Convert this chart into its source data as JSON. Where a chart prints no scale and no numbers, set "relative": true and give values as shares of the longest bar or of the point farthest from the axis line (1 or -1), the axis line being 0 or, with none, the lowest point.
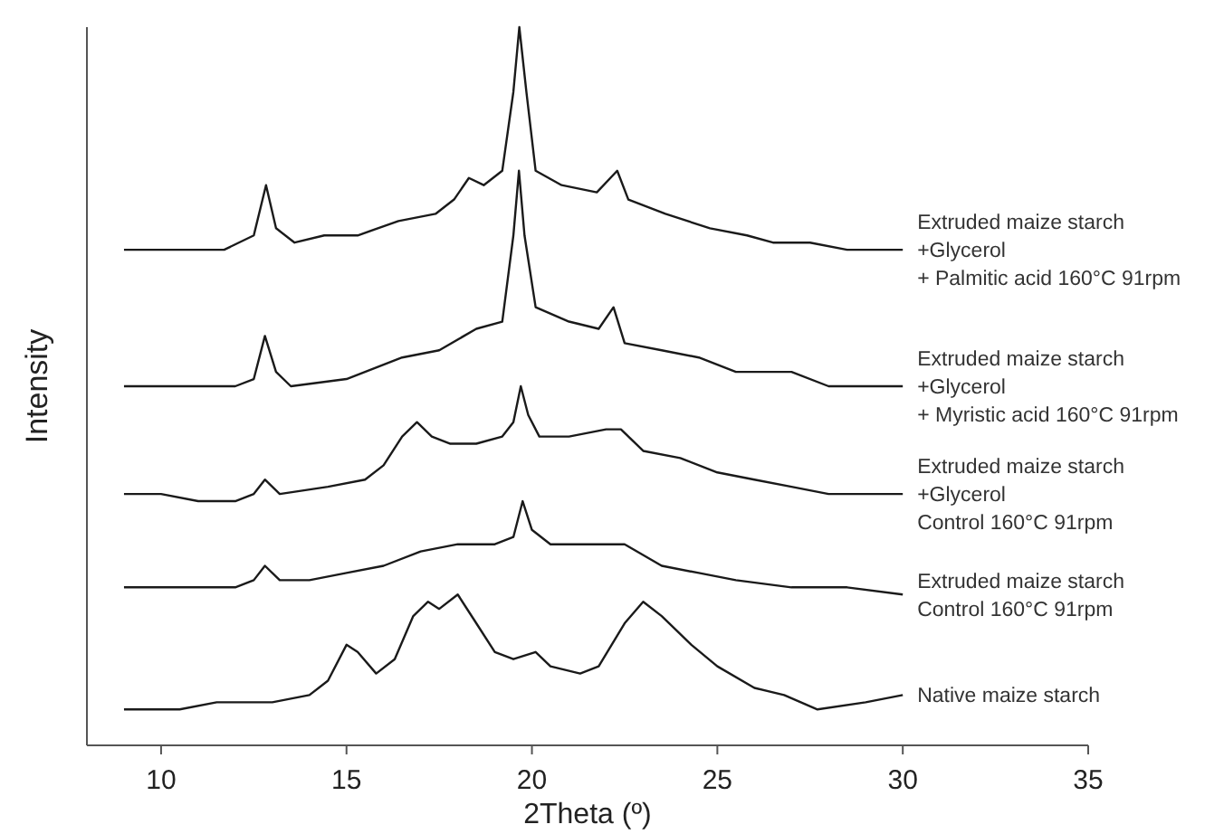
{
  "chart_data": {
    "type": "line",
    "relative": true,
    "xlabel": "2Theta (º)",
    "ylabel": "Intensity",
    "xlim": [
      8,
      35
    ],
    "xticks": [
      10,
      15,
      20,
      25,
      30,
      35
    ],
    "grid": false,
    "marker": "none",
    "line_style": "solid",
    "series": [
      {
        "name": "Extruded maize starch\n+Glycerol\n+ Palmitic acid 160°C 91rpm",
        "color": "#1a1a1a",
        "x": [
          9,
          10,
          11,
          11.7,
          12.5,
          12.83,
          13.1,
          13.6,
          14.4,
          15.3,
          16.4,
          17.4,
          17.9,
          18.3,
          18.7,
          19.2,
          19.5,
          19.66,
          19.85,
          20.1,
          20.8,
          21.75,
          22.3,
          22.6,
          23.6,
          24.8,
          25.8,
          26.5,
          27.5,
          28.5,
          30
        ],
        "values": [
          0.69,
          0.69,
          0.69,
          0.69,
          0.71,
          0.78,
          0.72,
          0.7,
          0.71,
          0.71,
          0.73,
          0.74,
          0.76,
          0.79,
          0.78,
          0.8,
          0.91,
          1,
          0.91,
          0.8,
          0.78,
          0.77,
          0.8,
          0.76,
          0.74,
          0.72,
          0.71,
          0.7,
          0.7,
          0.69,
          0.69
        ]
      },
      {
        "name": "Extruded maize starch\n+Glycerol\n+ Myristic acid 160°C 91rpm",
        "color": "#1a1a1a",
        "x": [
          9,
          10,
          11,
          12,
          12.5,
          12.8,
          13.1,
          13.5,
          15,
          16.5,
          17.5,
          18.5,
          19.2,
          19.5,
          19.65,
          19.8,
          20.1,
          21,
          21.8,
          22.2,
          22.5,
          23.5,
          24.5,
          25.5,
          27,
          28,
          30
        ],
        "values": [
          0.5,
          0.5,
          0.5,
          0.5,
          0.51,
          0.57,
          0.52,
          0.5,
          0.51,
          0.54,
          0.55,
          0.58,
          0.59,
          0.71,
          0.8,
          0.71,
          0.61,
          0.59,
          0.58,
          0.61,
          0.56,
          0.55,
          0.54,
          0.52,
          0.52,
          0.5,
          0.5
        ]
      },
      {
        "name": "Extruded maize starch\n+Glycerol\nControl 160°C 91rpm",
        "color": "#1a1a1a",
        "x": [
          9,
          10,
          11,
          12,
          12.5,
          12.8,
          13.2,
          14.5,
          15.5,
          16,
          16.5,
          16.9,
          17.3,
          17.8,
          18.5,
          19.2,
          19.5,
          19.7,
          19.9,
          20.2,
          21,
          22,
          22.4,
          23,
          24,
          25,
          26,
          27,
          28,
          30
        ],
        "values": [
          0.35,
          0.35,
          0.34,
          0.34,
          0.35,
          0.37,
          0.35,
          0.36,
          0.37,
          0.39,
          0.43,
          0.45,
          0.43,
          0.42,
          0.42,
          0.43,
          0.45,
          0.5,
          0.46,
          0.43,
          0.43,
          0.44,
          0.44,
          0.41,
          0.4,
          0.38,
          0.37,
          0.36,
          0.35,
          0.35
        ]
      },
      {
        "name": "Extruded maize starch\nControl 160°C 91rpm",
        "color": "#1a1a1a",
        "x": [
          9,
          10,
          11,
          12,
          12.5,
          12.8,
          13.2,
          14,
          15,
          16,
          17,
          18,
          19,
          19.5,
          19.75,
          20,
          20.5,
          21.5,
          22.5,
          23.5,
          24.5,
          25.5,
          27,
          28.5,
          30
        ],
        "values": [
          0.22,
          0.22,
          0.22,
          0.22,
          0.23,
          0.25,
          0.23,
          0.23,
          0.24,
          0.25,
          0.27,
          0.28,
          0.28,
          0.29,
          0.34,
          0.3,
          0.28,
          0.28,
          0.28,
          0.25,
          0.24,
          0.23,
          0.22,
          0.22,
          0.21
        ]
      },
      {
        "name": "Native maize starch",
        "color": "#1a1a1a",
        "x": [
          9,
          10.5,
          11.5,
          13,
          14,
          14.5,
          15,
          15.3,
          15.8,
          16.3,
          16.8,
          17.2,
          17.5,
          18,
          18.5,
          19,
          19.5,
          20.1,
          20.5,
          21.3,
          21.8,
          22.5,
          23,
          23.5,
          24.3,
          25,
          26,
          26.8,
          27.7,
          29,
          30
        ],
        "values": [
          0.05,
          0.05,
          0.06,
          0.06,
          0.07,
          0.09,
          0.14,
          0.13,
          0.1,
          0.12,
          0.18,
          0.2,
          0.19,
          0.21,
          0.17,
          0.13,
          0.12,
          0.13,
          0.11,
          0.1,
          0.11,
          0.17,
          0.2,
          0.18,
          0.14,
          0.11,
          0.08,
          0.07,
          0.05,
          0.06,
          0.07
        ]
      }
    ]
  }
}
